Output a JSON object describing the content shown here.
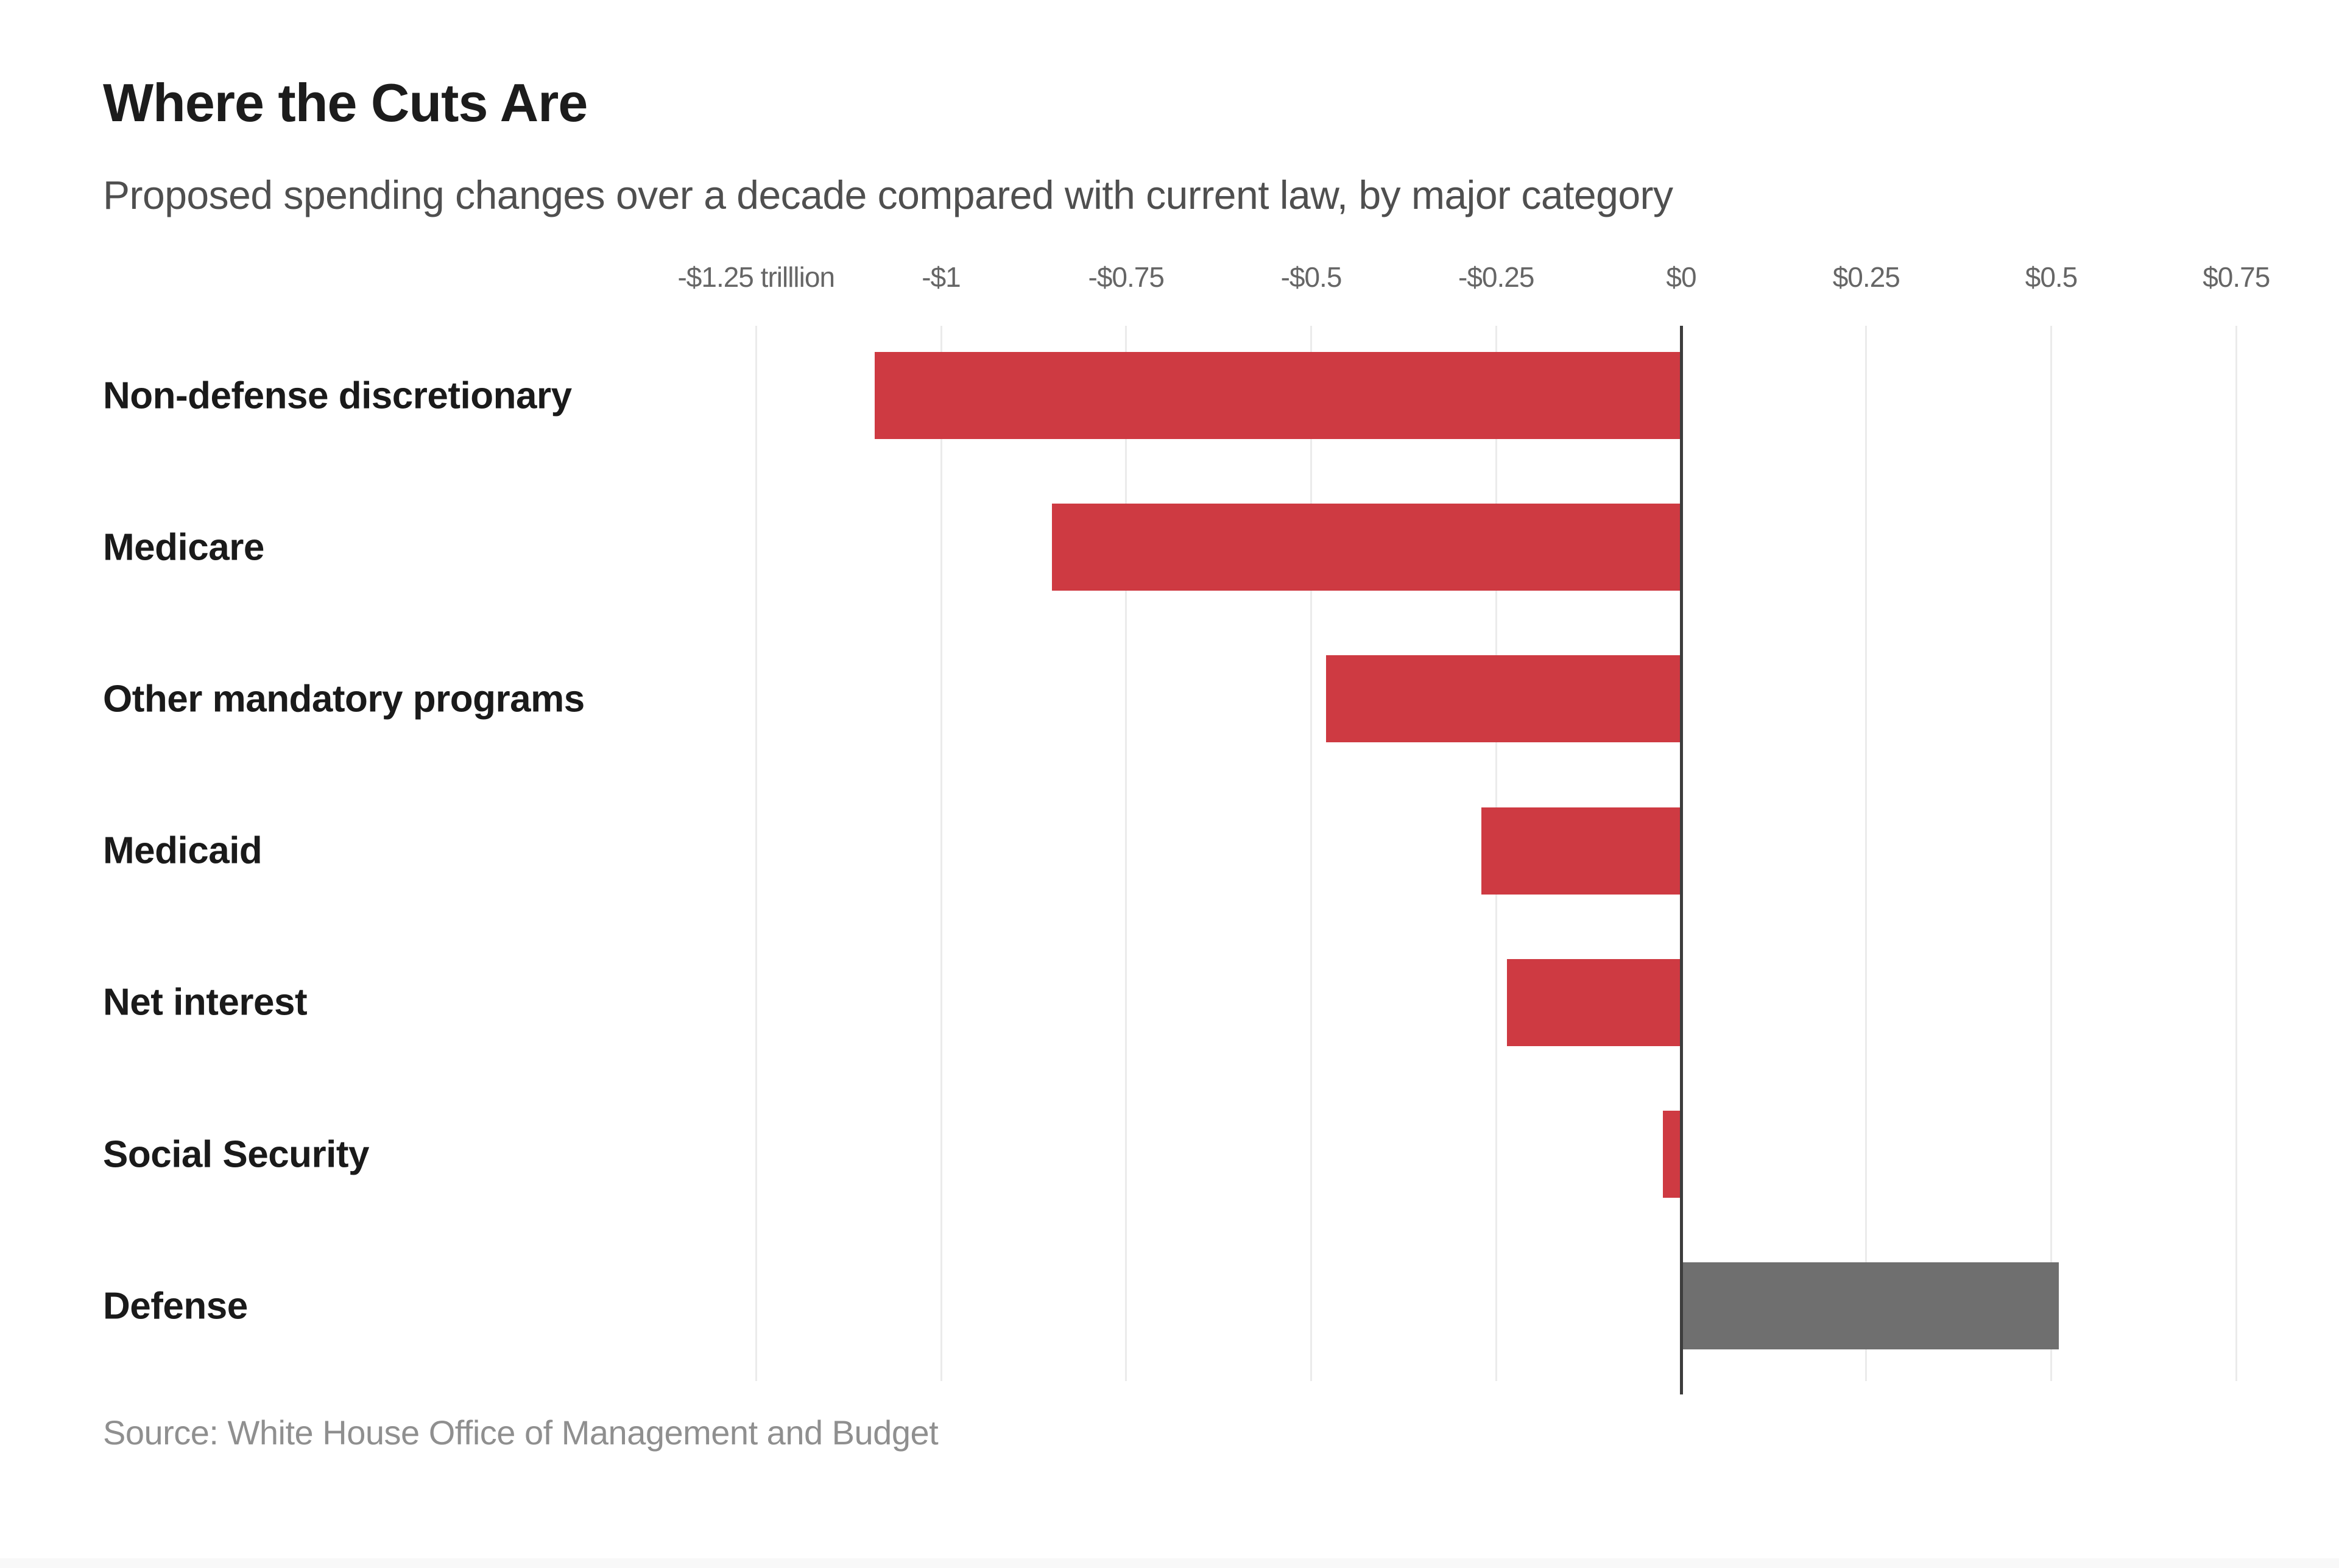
{
  "header": {
    "title": "Where the Cuts Are",
    "subtitle": "Proposed spending changes over a decade compared with current law, by major category"
  },
  "footer": {
    "source": "Source: White House Office of Management and Budget"
  },
  "chart_data": {
    "type": "bar",
    "orientation": "horizontal",
    "title": "Where the Cuts Are",
    "subtitle": "Proposed spending changes over a decade compared with current law, by major category",
    "unit": "trillions of dollars",
    "categories": [
      "Non-defense discretionary",
      "Medicare",
      "Other mandatory programs",
      "Medicaid",
      "Net interest",
      "Social Security",
      "Defense"
    ],
    "values": [
      -1.09,
      -0.85,
      -0.48,
      -0.27,
      -0.235,
      -0.025,
      0.51
    ],
    "x_ticks": [
      {
        "value": -1.25,
        "label": "-$1.25 trilllion"
      },
      {
        "value": -1.0,
        "label": "-$1"
      },
      {
        "value": -0.75,
        "label": "-$0.75"
      },
      {
        "value": -0.5,
        "label": "-$0.5"
      },
      {
        "value": -0.25,
        "label": "-$0.25"
      },
      {
        "value": 0,
        "label": "$0"
      },
      {
        "value": 0.25,
        "label": "$0.25"
      },
      {
        "value": 0.5,
        "label": "$0.5"
      },
      {
        "value": 0.75,
        "label": "$0.75"
      }
    ],
    "xlim": [
      -1.33,
      0.81
    ],
    "grid": true,
    "legend": false,
    "colors": {
      "cut": "#ce3a42",
      "increase": "#6f6f6f",
      "zero_axis": "#3d3d3d",
      "gridline": "#ebebeb"
    }
  }
}
